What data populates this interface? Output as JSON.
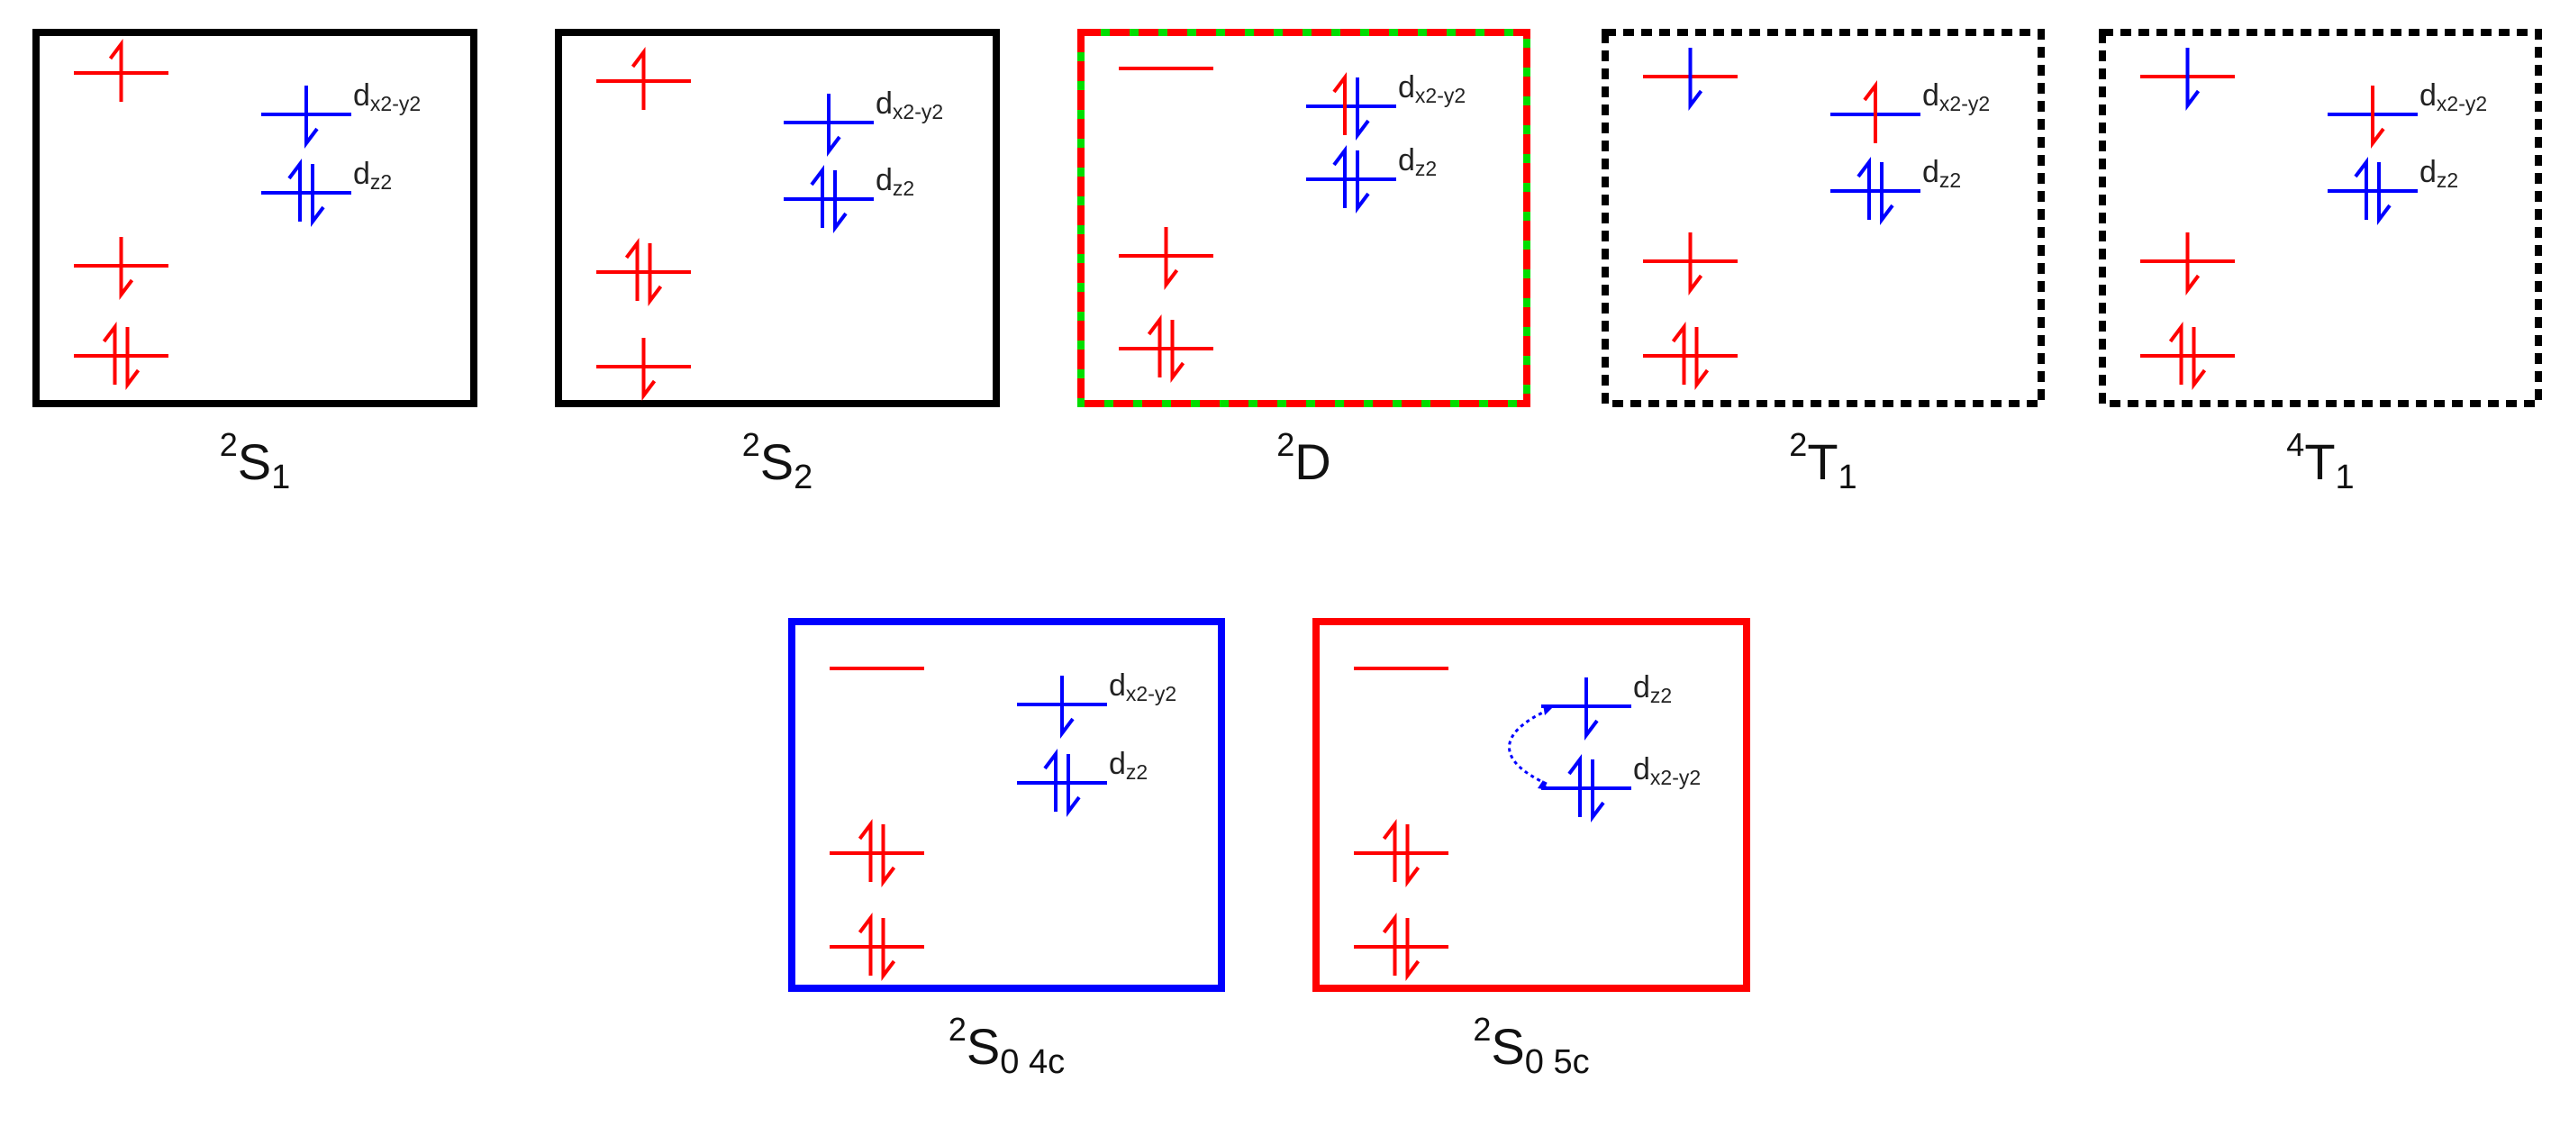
{
  "colors": {
    "red": "#ff0000",
    "blue": "#0000ff",
    "black": "#000000",
    "green": "#00dd00"
  },
  "states": [
    {
      "sup": "2",
      "main": "S",
      "sub": "1",
      "border": "solid-black",
      "left": [
        [
          {
            "dir": "up",
            "color": "red"
          }
        ],
        [
          {
            "dir": "down",
            "color": "red"
          }
        ],
        [
          {
            "dir": "up",
            "color": "red"
          },
          {
            "dir": "down",
            "color": "red"
          }
        ]
      ],
      "right": [
        {
          "label_main": "d",
          "label_sub": "x2-y2",
          "arrows": [
            {
              "dir": "down",
              "color": "blue"
            }
          ]
        },
        {
          "label_main": "d",
          "label_sub": "z2",
          "arrows": [
            {
              "dir": "up",
              "color": "blue"
            },
            {
              "dir": "down",
              "color": "blue"
            }
          ]
        }
      ]
    },
    {
      "sup": "2",
      "main": "S",
      "sub": "2",
      "border": "solid-black",
      "left": [
        [
          {
            "dir": "up",
            "color": "red"
          }
        ],
        [
          {
            "dir": "up",
            "color": "red"
          },
          {
            "dir": "down",
            "color": "red"
          }
        ],
        [
          {
            "dir": "down",
            "color": "red"
          }
        ]
      ],
      "right": [
        {
          "label_main": "d",
          "label_sub": "x2-y2",
          "arrows": [
            {
              "dir": "down",
              "color": "blue"
            }
          ]
        },
        {
          "label_main": "d",
          "label_sub": "z2",
          "arrows": [
            {
              "dir": "up",
              "color": "blue"
            },
            {
              "dir": "down",
              "color": "blue"
            }
          ]
        }
      ]
    },
    {
      "sup": "2",
      "main": "D",
      "sub": "",
      "border": "dashed-red-green",
      "left": [
        [],
        [
          {
            "dir": "down",
            "color": "red"
          }
        ],
        [
          {
            "dir": "up",
            "color": "red"
          },
          {
            "dir": "down",
            "color": "red"
          }
        ]
      ],
      "right": [
        {
          "label_main": "d",
          "label_sub": "x2-y2",
          "arrows": [
            {
              "dir": "up",
              "color": "red"
            },
            {
              "dir": "down",
              "color": "blue"
            }
          ]
        },
        {
          "label_main": "d",
          "label_sub": "z2",
          "arrows": [
            {
              "dir": "up",
              "color": "blue"
            },
            {
              "dir": "down",
              "color": "blue"
            }
          ]
        }
      ]
    },
    {
      "sup": "2",
      "main": "T",
      "sub": "1",
      "border": "dashed-black",
      "left": [
        [
          {
            "dir": "down",
            "color": "blue"
          }
        ],
        [
          {
            "dir": "down",
            "color": "red"
          }
        ],
        [
          {
            "dir": "up",
            "color": "red"
          },
          {
            "dir": "down",
            "color": "red"
          }
        ]
      ],
      "right": [
        {
          "label_main": "d",
          "label_sub": "x2-y2",
          "arrows": [
            {
              "dir": "up",
              "color": "red"
            }
          ]
        },
        {
          "label_main": "d",
          "label_sub": "z2",
          "arrows": [
            {
              "dir": "up",
              "color": "blue"
            },
            {
              "dir": "down",
              "color": "blue"
            }
          ]
        }
      ]
    },
    {
      "sup": "4",
      "main": "T",
      "sub": "1",
      "border": "dashed-black",
      "left": [
        [
          {
            "dir": "down",
            "color": "blue"
          }
        ],
        [
          {
            "dir": "down",
            "color": "red"
          }
        ],
        [
          {
            "dir": "up",
            "color": "red"
          },
          {
            "dir": "down",
            "color": "red"
          }
        ]
      ],
      "right": [
        {
          "label_main": "d",
          "label_sub": "x2-y2",
          "arrows": [
            {
              "dir": "down",
              "color": "red"
            }
          ]
        },
        {
          "label_main": "d",
          "label_sub": "z2",
          "arrows": [
            {
              "dir": "up",
              "color": "blue"
            },
            {
              "dir": "down",
              "color": "blue"
            }
          ]
        }
      ]
    },
    {
      "sup": "2",
      "main": "S",
      "sub": "0 4c",
      "border": "solid-blue",
      "left": [
        [],
        [
          {
            "dir": "up",
            "color": "red"
          },
          {
            "dir": "down",
            "color": "red"
          }
        ],
        [
          {
            "dir": "up",
            "color": "red"
          },
          {
            "dir": "down",
            "color": "red"
          }
        ]
      ],
      "right": [
        {
          "label_main": "d",
          "label_sub": "x2-y2",
          "arrows": [
            {
              "dir": "down",
              "color": "blue"
            }
          ]
        },
        {
          "label_main": "d",
          "label_sub": "z2",
          "arrows": [
            {
              "dir": "up",
              "color": "blue"
            },
            {
              "dir": "down",
              "color": "blue"
            }
          ]
        }
      ]
    },
    {
      "sup": "2",
      "main": "S",
      "sub": "0 5c",
      "border": "solid-red",
      "exchange_arrow": true,
      "left": [
        [],
        [
          {
            "dir": "up",
            "color": "red"
          },
          {
            "dir": "down",
            "color": "red"
          }
        ],
        [
          {
            "dir": "up",
            "color": "red"
          },
          {
            "dir": "down",
            "color": "red"
          }
        ]
      ],
      "right": [
        {
          "label_main": "d",
          "label_sub": "z2",
          "arrows": [
            {
              "dir": "down",
              "color": "blue"
            }
          ]
        },
        {
          "label_main": "d",
          "label_sub": "x2-y2",
          "arrows": [
            {
              "dir": "up",
              "color": "blue"
            },
            {
              "dir": "down",
              "color": "blue"
            }
          ]
        }
      ]
    }
  ]
}
